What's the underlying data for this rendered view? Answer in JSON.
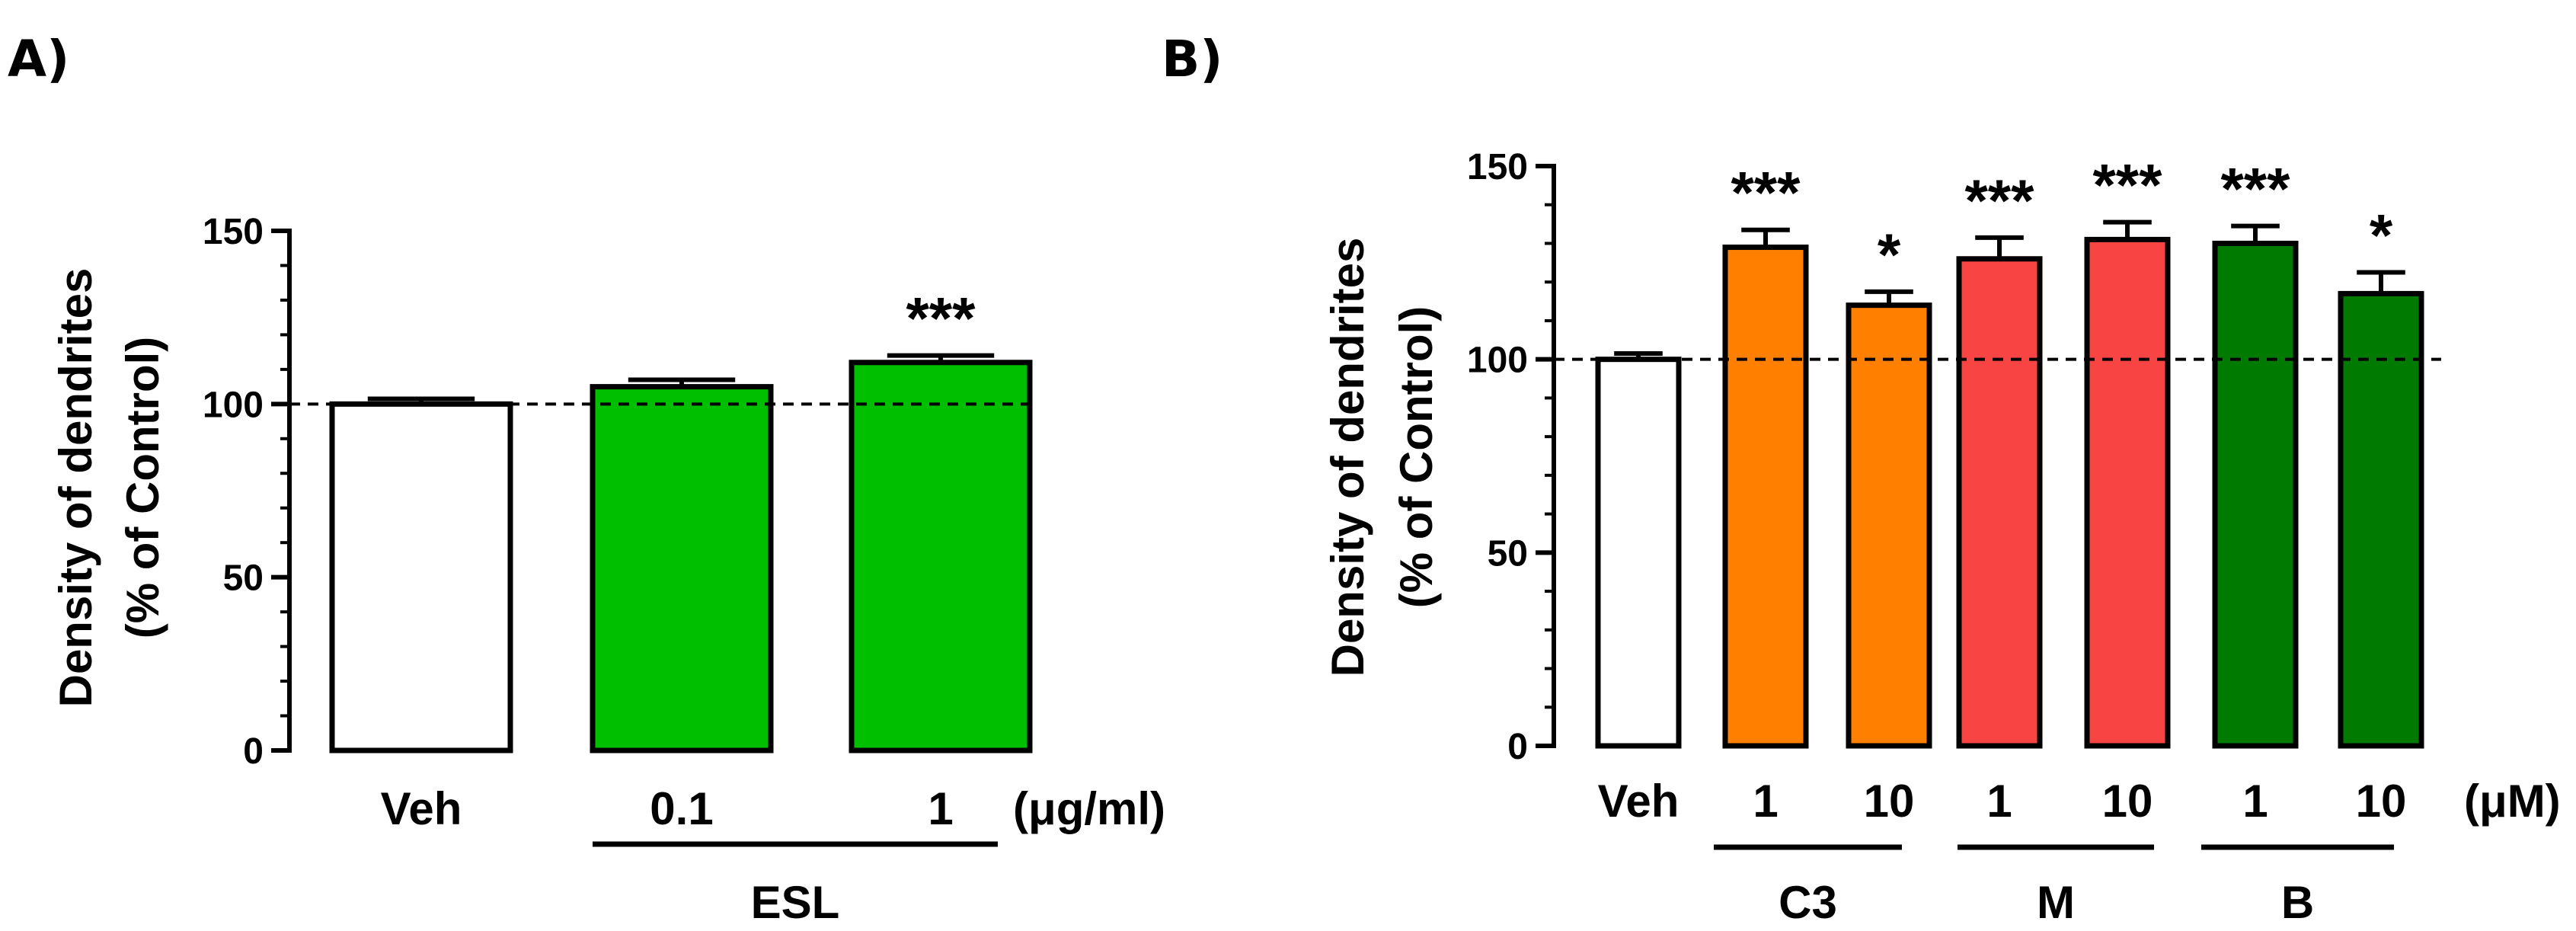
{
  "chart_data": [
    {
      "type": "bar",
      "panel_label": "A)",
      "ylabel_line1": "Density of dendrites",
      "ylabel_line2": "(% of Control)",
      "ylim": [
        0,
        150
      ],
      "yticks": [
        "0",
        "50",
        "100",
        "150"
      ],
      "ytick_values": [
        0,
        50,
        100,
        150
      ],
      "reference_line": 100,
      "unit_label": "(μg/ml)",
      "bars": [
        {
          "label": "Veh",
          "value": 100,
          "err": 1.5,
          "color": "#ffffff",
          "sig": ""
        },
        {
          "label": "0.1",
          "value": 105,
          "err": 2,
          "color": "#00bf00",
          "sig": ""
        },
        {
          "label": "1",
          "value": 112,
          "err": 2,
          "color": "#00bf00",
          "sig": "***"
        }
      ],
      "groups": [
        {
          "label": "ESL",
          "bars": [
            1,
            2
          ]
        }
      ]
    },
    {
      "type": "bar",
      "panel_label": "B)",
      "ylabel_line1": "Density of dendrites",
      "ylabel_line2": "(% of Control)",
      "ylim": [
        0,
        150
      ],
      "yticks": [
        "0",
        "50",
        "100",
        "150"
      ],
      "ytick_values": [
        0,
        50,
        100,
        150
      ],
      "reference_line": 100,
      "unit_label": "(μM)",
      "bars": [
        {
          "label": "Veh",
          "value": 100,
          "err": 1.5,
          "color": "#ffffff",
          "sig": ""
        },
        {
          "label": "1",
          "value": 129,
          "err": 4.5,
          "color": "#ff8000",
          "sig": "***"
        },
        {
          "label": "10",
          "value": 114,
          "err": 3.5,
          "color": "#ff8000",
          "sig": "*"
        },
        {
          "label": "1",
          "value": 126,
          "err": 5.5,
          "color": "#f94444",
          "sig": "***"
        },
        {
          "label": "10",
          "value": 131,
          "err": 4.5,
          "color": "#f94444",
          "sig": "***"
        },
        {
          "label": "1",
          "value": 130,
          "err": 4.5,
          "color": "#007a00",
          "sig": "***"
        },
        {
          "label": "10",
          "value": 117,
          "err": 5.5,
          "color": "#007a00",
          "sig": "*"
        }
      ],
      "groups": [
        {
          "label": "C3",
          "bars": [
            1,
            2
          ]
        },
        {
          "label": "M",
          "bars": [
            3,
            4
          ]
        },
        {
          "label": "B",
          "bars": [
            5,
            6
          ]
        }
      ]
    }
  ]
}
